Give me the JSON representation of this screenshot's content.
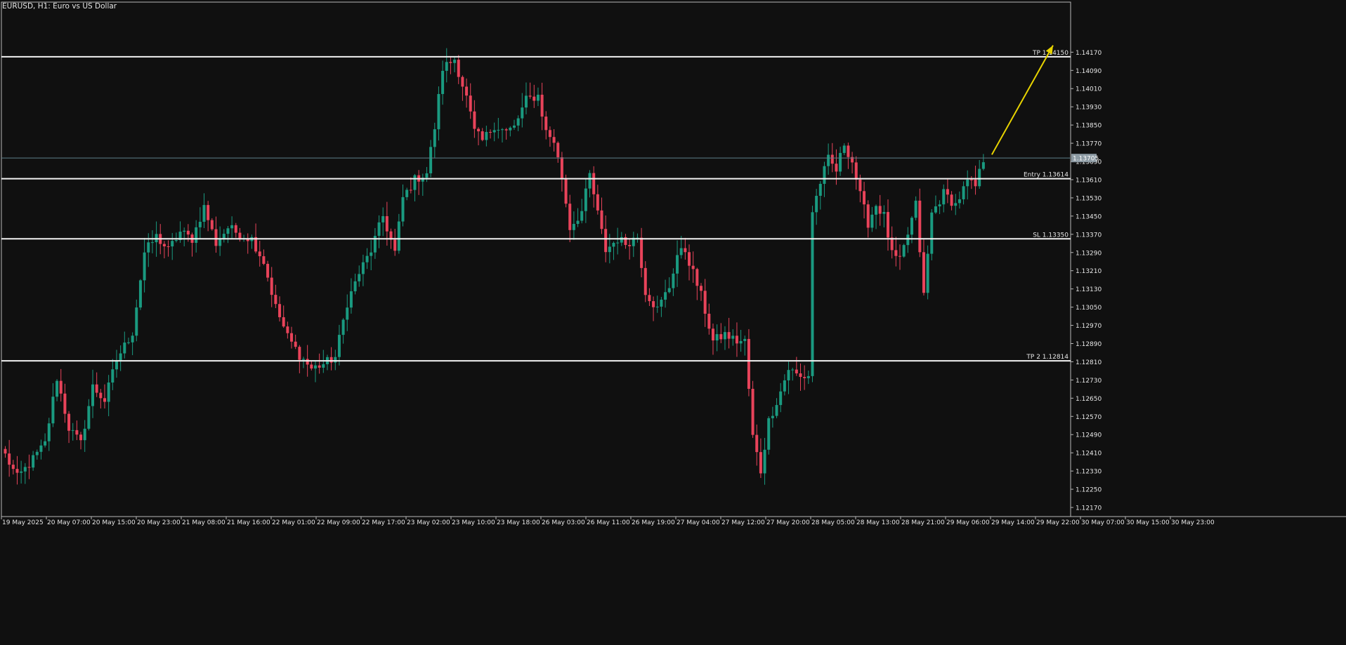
{
  "window": {
    "title": "EURUSD, H1:  Euro vs US Dollar"
  },
  "colors": {
    "background": "#101010",
    "frame": "#b8b8b8",
    "text": "#e6e6e6",
    "bull": "#1a9a80",
    "bear": "#e8435a",
    "level_line": "#f2f2f2",
    "current_price_line": "#5e7f8a",
    "current_price_label_bg": "#8c9aa3",
    "arrow": "#e8d400"
  },
  "chart_data": {
    "type": "candlestick",
    "symbol": "EURUSD",
    "timeframe": "H1",
    "title": "EURUSD, H1:  Euro vs US Dollar",
    "ylim": [
      1.1213,
      1.1439
    ],
    "y_ticks": [
      "1.14170",
      "1.14090",
      "1.14010",
      "1.13930",
      "1.13850",
      "1.13770",
      "1.13690",
      "1.13610",
      "1.13530",
      "1.13450",
      "1.13370",
      "1.13290",
      "1.13210",
      "1.13130",
      "1.13050",
      "1.12970",
      "1.12890",
      "1.12810",
      "1.12730",
      "1.12650",
      "1.12570",
      "1.12490",
      "1.12410",
      "1.12330",
      "1.12250",
      "1.12170"
    ],
    "x_ticks": [
      "19 May 2025",
      "20 May 07:00",
      "20 May 15:00",
      "20 May 23:00",
      "21 May 08:00",
      "21 May 16:00",
      "22 May 01:00",
      "22 May 09:00",
      "22 May 17:00",
      "23 May 02:00",
      "23 May 10:00",
      "23 May 18:00",
      "26 May 03:00",
      "26 May 11:00",
      "26 May 19:00",
      "27 May 04:00",
      "27 May 12:00",
      "27 May 20:00",
      "28 May 05:00",
      "28 May 13:00",
      "28 May 21:00",
      "29 May 06:00",
      "29 May 14:00",
      "29 May 22:00",
      "30 May 07:00",
      "30 May 15:00",
      "30 May 23:00"
    ],
    "current_price": {
      "label": "1.13705",
      "value": 1.13705
    },
    "levels": [
      {
        "label": "TP  1.14150",
        "value": 1.1415
      },
      {
        "label": "Entry  1.13614",
        "value": 1.13614
      },
      {
        "label": "SL  1.13350",
        "value": 1.1335
      },
      {
        "label": "TP 2  1.12814",
        "value": 1.12814
      }
    ],
    "annotation": {
      "type": "arrow",
      "from": [
        1.0,
        1.1372
      ],
      "to": [
        1.12,
        1.142
      ]
    },
    "anchors": [
      [
        0,
        1.124
      ],
      [
        3,
        1.123
      ],
      [
        6,
        1.1236
      ],
      [
        10,
        1.1245
      ],
      [
        13,
        1.1274
      ],
      [
        16,
        1.1252
      ],
      [
        19,
        1.1245
      ],
      [
        22,
        1.127
      ],
      [
        25,
        1.1264
      ],
      [
        28,
        1.1282
      ],
      [
        32,
        1.1294
      ],
      [
        35,
        1.1329
      ],
      [
        38,
        1.1336
      ],
      [
        41,
        1.133
      ],
      [
        44,
        1.1338
      ],
      [
        47,
        1.1335
      ],
      [
        50,
        1.1349
      ],
      [
        53,
        1.1333
      ],
      [
        56,
        1.134
      ],
      [
        59,
        1.1337
      ],
      [
        62,
        1.1335
      ],
      [
        65,
        1.1325
      ],
      [
        68,
        1.1305
      ],
      [
        71,
        1.1292
      ],
      [
        74,
        1.1284
      ],
      [
        77,
        1.1278
      ],
      [
        80,
        1.128
      ],
      [
        83,
        1.1283
      ],
      [
        86,
        1.1307
      ],
      [
        89,
        1.132
      ],
      [
        92,
        1.133
      ],
      [
        95,
        1.1345
      ],
      [
        98,
        1.1329
      ],
      [
        100,
        1.1353
      ],
      [
        103,
        1.1361
      ],
      [
        106,
        1.1364
      ],
      [
        108,
        1.1384
      ],
      [
        110,
        1.141
      ],
      [
        113,
        1.1414
      ],
      [
        116,
        1.1397
      ],
      [
        118,
        1.1382
      ],
      [
        120,
        1.1378
      ],
      [
        123,
        1.1385
      ],
      [
        126,
        1.1382
      ],
      [
        128,
        1.1384
      ],
      [
        131,
        1.1396
      ],
      [
        134,
        1.1398
      ],
      [
        136,
        1.1382
      ],
      [
        138,
        1.1378
      ],
      [
        140,
        1.1362
      ],
      [
        142,
        1.134
      ],
      [
        145,
        1.1347
      ],
      [
        147,
        1.1363
      ],
      [
        149,
        1.1346
      ],
      [
        151,
        1.133
      ],
      [
        154,
        1.1335
      ],
      [
        156,
        1.1333
      ],
      [
        159,
        1.1336
      ],
      [
        161,
        1.1312
      ],
      [
        164,
        1.1304
      ],
      [
        167,
        1.1314
      ],
      [
        169,
        1.1328
      ],
      [
        171,
        1.133
      ],
      [
        173,
        1.132
      ],
      [
        175,
        1.131
      ],
      [
        178,
        1.129
      ],
      [
        181,
        1.1293
      ],
      [
        184,
        1.129
      ],
      [
        186,
        1.129
      ],
      [
        188,
        1.1248
      ],
      [
        190,
        1.1233
      ],
      [
        192,
        1.1255
      ],
      [
        195,
        1.1268
      ],
      [
        197,
        1.1278
      ],
      [
        200,
        1.1274
      ],
      [
        202,
        1.1275
      ],
      [
        203,
        1.1347
      ],
      [
        205,
        1.136
      ],
      [
        207,
        1.137
      ],
      [
        209,
        1.1365
      ],
      [
        211,
        1.1377
      ],
      [
        213,
        1.1369
      ],
      [
        215,
        1.1354
      ],
      [
        217,
        1.1342
      ],
      [
        219,
        1.135
      ],
      [
        221,
        1.1345
      ],
      [
        223,
        1.1328
      ],
      [
        225,
        1.1325
      ],
      [
        227,
        1.1337
      ],
      [
        229,
        1.135
      ],
      [
        231,
        1.131
      ],
      [
        233,
        1.1346
      ],
      [
        236,
        1.1355
      ],
      [
        239,
        1.135
      ],
      [
        242,
        1.136
      ],
      [
        244,
        1.1358
      ],
      [
        246,
        1.137
      ]
    ]
  }
}
